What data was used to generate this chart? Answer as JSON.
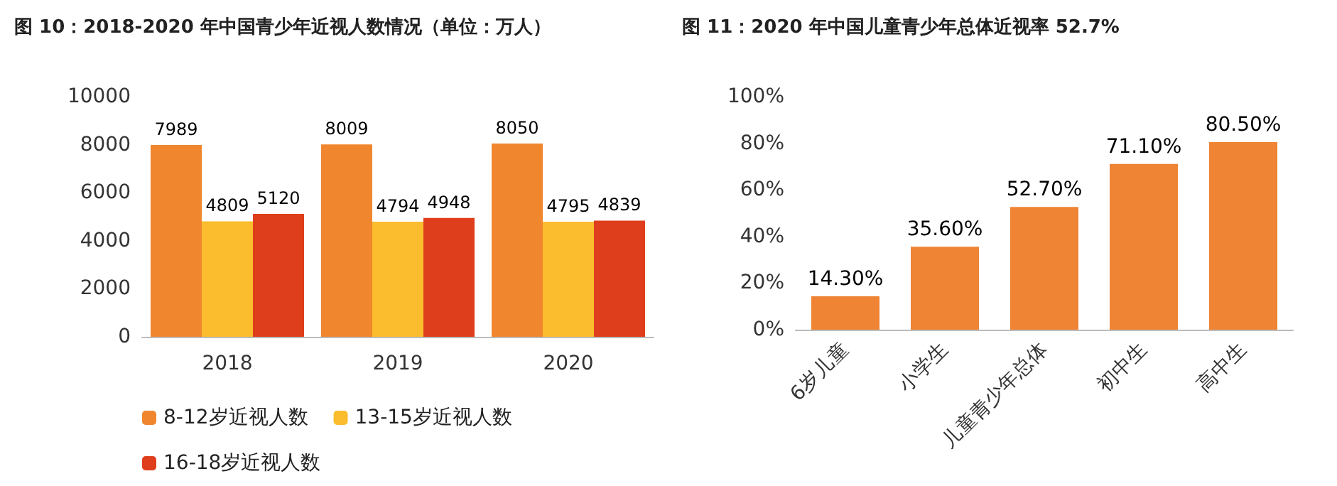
{
  "chart_data": [
    {
      "type": "bar",
      "title": "图 10：2018-2020 年中国青少年近视人数情况（单位：万人）",
      "categories": [
        "2018",
        "2019",
        "2020"
      ],
      "series": [
        {
          "name": "8-12岁近视人数",
          "color": "#f0862e",
          "values": [
            7989,
            8009,
            8050
          ]
        },
        {
          "name": "13-15岁近视人数",
          "color": "#fbbd2e",
          "values": [
            4809,
            4794,
            4795
          ]
        },
        {
          "name": "16-18岁近视人数",
          "color": "#df3e1c",
          "values": [
            5120,
            4948,
            4839
          ]
        }
      ],
      "ylim": [
        0,
        10000
      ],
      "yticks": [
        0,
        2000,
        4000,
        6000,
        8000,
        10000
      ],
      "grid": false,
      "legend": "bottom",
      "data_labels": true
    },
    {
      "type": "bar",
      "title": "图 11：2020 年中国儿童青少年总体近视率 52.7%",
      "categories": [
        "6岁儿童",
        "小学生",
        "儿童青少年总体",
        "初中生",
        "高中生"
      ],
      "values": [
        14.3,
        35.6,
        52.7,
        71.1,
        80.5
      ],
      "value_labels": [
        "14.30%",
        "35.60%",
        "52.70%",
        "71.10%",
        "80.50%"
      ],
      "color": "#ee8434",
      "ylim": [
        0,
        100
      ],
      "yticks": [
        {
          "value": 0,
          "label": "0%"
        },
        {
          "value": 20,
          "label": "20%"
        },
        {
          "value": 40,
          "label": "40%"
        },
        {
          "value": 60,
          "label": "60%"
        },
        {
          "value": 80,
          "label": "80%"
        },
        {
          "value": 100,
          "label": "100%"
        }
      ],
      "grid": false
    }
  ]
}
